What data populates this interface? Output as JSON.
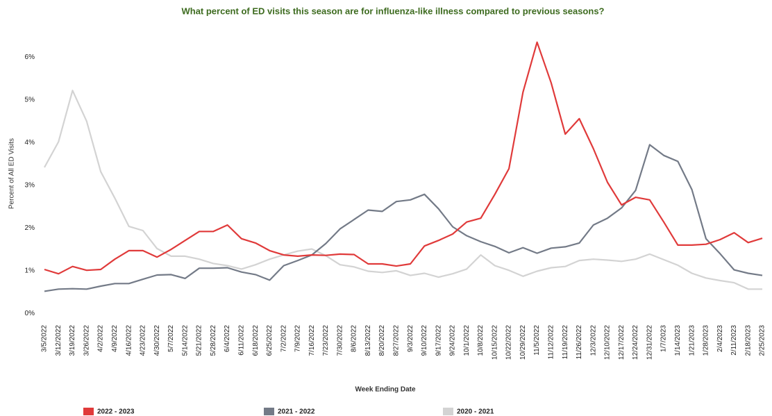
{
  "chart_data": {
    "type": "line",
    "title": "What percent of ED visits this season are for influenza-like illness compared to previous seasons?",
    "x_label": "Week Ending Date",
    "y_label": "Percent of All ED Visits",
    "categories": [
      "3/5/2022",
      "3/12/2022",
      "3/19/2022",
      "3/26/2022",
      "4/2/2022",
      "4/9/2022",
      "4/16/2022",
      "4/23/2022",
      "4/30/2022",
      "5/7/2022",
      "5/14/2022",
      "5/21/2022",
      "5/28/2022",
      "6/4/2022",
      "6/11/2022",
      "6/18/2022",
      "6/25/2022",
      "7/2/2022",
      "7/9/2022",
      "7/16/2022",
      "7/23/2022",
      "7/30/2022",
      "8/6/2022",
      "8/13/2022",
      "8/20/2022",
      "8/27/2022",
      "9/3/2022",
      "9/10/2022",
      "9/17/2022",
      "9/24/2022",
      "10/1/2022",
      "10/8/2022",
      "10/15/2022",
      "10/22/2022",
      "10/29/2022",
      "11/5/2022",
      "11/12/2022",
      "11/19/2022",
      "11/26/2022",
      "12/3/2022",
      "12/10/2022",
      "12/17/2022",
      "12/24/2022",
      "12/31/2022",
      "1/7/2023",
      "1/14/2023",
      "1/21/2023",
      "1/28/2023",
      "2/4/2023",
      "2/11/2023",
      "2/18/2023",
      "2/25/2023"
    ],
    "series": [
      {
        "name": "2022 - 2023",
        "color": "#e03a3a",
        "values": [
          1.13,
          1.03,
          1.2,
          1.11,
          1.13,
          1.37,
          1.57,
          1.57,
          1.42,
          1.6,
          1.81,
          2.02,
          2.02,
          2.17,
          1.85,
          1.75,
          1.57,
          1.47,
          1.44,
          1.47,
          1.46,
          1.49,
          1.48,
          1.26,
          1.26,
          1.21,
          1.26,
          1.68,
          1.81,
          1.96,
          2.24,
          2.33,
          2.89,
          3.49,
          5.28,
          6.45,
          5.5,
          4.3,
          4.66,
          3.96,
          3.17,
          2.64,
          2.82,
          2.76,
          2.24,
          1.7,
          1.7,
          1.72,
          1.83,
          1.99,
          1.76,
          1.86
        ]
      },
      {
        "name": "2021 - 2022",
        "color": "#737a87",
        "values": [
          0.62,
          0.67,
          0.68,
          0.67,
          0.74,
          0.8,
          0.8,
          0.9,
          1.0,
          1.01,
          0.92,
          1.16,
          1.16,
          1.17,
          1.07,
          1.01,
          0.88,
          1.22,
          1.34,
          1.47,
          1.74,
          2.08,
          2.3,
          2.52,
          2.49,
          2.72,
          2.76,
          2.89,
          2.55,
          2.13,
          1.92,
          1.78,
          1.67,
          1.52,
          1.64,
          1.51,
          1.63,
          1.66,
          1.75,
          2.17,
          2.33,
          2.57,
          2.98,
          4.05,
          3.8,
          3.66,
          3.0,
          1.85,
          1.5,
          1.12,
          1.04,
          0.99
        ]
      },
      {
        "name": "2020 - 2021",
        "color": "#d3d3d3",
        "values": [
          3.52,
          4.12,
          5.32,
          4.6,
          3.42,
          2.8,
          2.14,
          2.04,
          1.62,
          1.44,
          1.44,
          1.37,
          1.27,
          1.22,
          1.14,
          1.24,
          1.37,
          1.47,
          1.56,
          1.61,
          1.45,
          1.24,
          1.19,
          1.09,
          1.06,
          1.1,
          0.99,
          1.04,
          0.95,
          1.03,
          1.14,
          1.47,
          1.22,
          1.11,
          0.97,
          1.09,
          1.17,
          1.2,
          1.34,
          1.37,
          1.35,
          1.32,
          1.37,
          1.49,
          1.36,
          1.23,
          1.04,
          0.93,
          0.87,
          0.82,
          0.67,
          0.67
        ]
      }
    ],
    "ylim": [
      0,
      6.6
    ],
    "yticks": [
      {
        "value": 0,
        "label": "0%"
      },
      {
        "value": 1,
        "label": "1%"
      },
      {
        "value": 2,
        "label": "2%"
      },
      {
        "value": 3,
        "label": "3%"
      },
      {
        "value": 4,
        "label": "4%"
      },
      {
        "value": 5,
        "label": "5%"
      },
      {
        "value": 6,
        "label": "6%"
      }
    ],
    "grid": false,
    "legend": "bottom"
  }
}
